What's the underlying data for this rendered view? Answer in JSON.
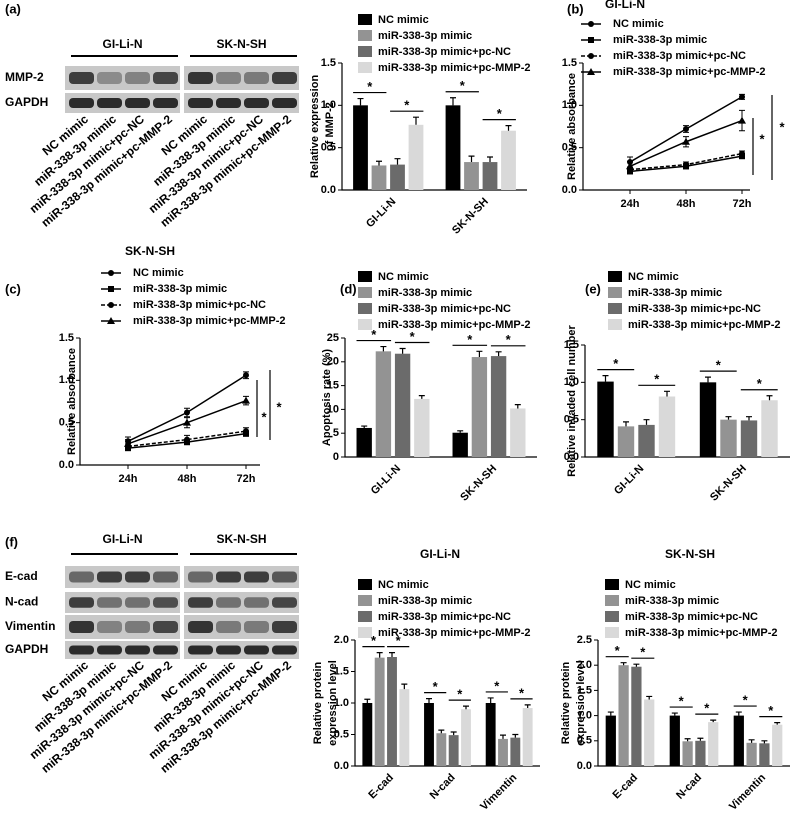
{
  "panel_labels": [
    "(a)",
    "(b)",
    "(c)",
    "(d)",
    "(e)",
    "(f)"
  ],
  "blots": [
    {
      "groups": [
        "GI-Li-N",
        "SK-N-SH"
      ],
      "rows": [
        "MMP-2",
        "GAPDH"
      ],
      "lanes": [
        "NC mimic",
        "miR-338-3p mimic",
        "miR-338-3p mimic+pc-NC",
        "miR-338-3p mimic+pc-MMP-2"
      ]
    },
    {
      "groups": [
        "GI-Li-N",
        "SK-N-SH"
      ],
      "rows": [
        "E-cad",
        "N-cad",
        "Vimentin",
        "GAPDH"
      ],
      "lanes": [
        "NC mimic",
        "miR-338-3p mimic",
        "miR-338-3p mimic+pc-NC",
        "miR-338-3p mimic+pc-MMP-2"
      ]
    }
  ],
  "chart_data": [
    {
      "type": "bar",
      "ylabel": [
        "Relative expression",
        "of MMP-2"
      ],
      "categories": [
        "GI-Li-N",
        "SK-N-SH"
      ],
      "series": [
        {
          "name": "NC mimic",
          "color": "#000000",
          "values": [
            1.0,
            1.0
          ],
          "errors": [
            0.08,
            0.09
          ]
        },
        {
          "name": "miR-338-3p mimic",
          "color": "#939393",
          "values": [
            0.29,
            0.33
          ],
          "errors": [
            0.05,
            0.07
          ]
        },
        {
          "name": "miR-338-3p mimic+pc-NC",
          "color": "#6b6b6b",
          "values": [
            0.3,
            0.33
          ],
          "errors": [
            0.07,
            0.06
          ]
        },
        {
          "name": "miR-338-3p mimic+pc-MMP-2",
          "color": "#d9d9d9",
          "values": [
            0.77,
            0.7
          ],
          "errors": [
            0.09,
            0.06
          ]
        }
      ],
      "ylim": [
        0,
        1.5
      ],
      "yticks": [
        {
          "value": 0,
          "label": "0.0"
        },
        0.5,
        {
          "value": 1,
          "label": "1.0"
        },
        1.5
      ],
      "annotations": [
        "*",
        "*",
        "*",
        "*"
      ]
    },
    {
      "type": "line",
      "title": "GI-Li-N",
      "ylabel": [
        "Relative absorbance"
      ],
      "categories": [
        "24h",
        "48h",
        "72h"
      ],
      "series": [
        {
          "name": "NC mimic",
          "color": "#000000",
          "marker": "circle",
          "values": [
            0.33,
            0.72,
            1.1
          ],
          "errors": [
            0.06,
            0.04,
            0.03
          ]
        },
        {
          "name": "miR-338-3p mimic",
          "color": "#000000",
          "marker": "square",
          "values": [
            0.22,
            0.28,
            0.4
          ],
          "errors": [
            0.03,
            0.03,
            0.03
          ]
        },
        {
          "name": "miR-338-3p mimic+pc-NC",
          "color": "#000000",
          "marker": "circle",
          "dashed": true,
          "values": [
            0.24,
            0.3,
            0.43
          ],
          "errors": [
            0.03,
            0.03,
            0.03
          ]
        },
        {
          "name": "miR-338-3p mimic+pc-MMP-2",
          "color": "#000000",
          "marker": "triangle",
          "values": [
            0.28,
            0.57,
            0.82
          ],
          "errors": [
            0.06,
            0.06,
            0.12
          ]
        }
      ],
      "ylim": [
        0,
        1.5
      ],
      "yticks": [
        {
          "value": 0,
          "label": "0.0"
        },
        0.5,
        {
          "value": 1,
          "label": "1.0"
        },
        1.5
      ],
      "annotations": [
        "*",
        "*"
      ]
    },
    {
      "type": "line",
      "title": "SK-N-SH",
      "ylabel": [
        "Relative absorbance"
      ],
      "categories": [
        "24h",
        "48h",
        "72h"
      ],
      "series": [
        {
          "name": "NC mimic",
          "color": "#000000",
          "marker": "circle",
          "values": [
            0.28,
            0.62,
            1.06
          ],
          "errors": [
            0.05,
            0.05,
            0.04
          ]
        },
        {
          "name": "miR-338-3p mimic",
          "color": "#000000",
          "marker": "square",
          "values": [
            0.2,
            0.27,
            0.37
          ],
          "errors": [
            0.03,
            0.03,
            0.03
          ]
        },
        {
          "name": "miR-338-3p mimic+pc-NC",
          "color": "#000000",
          "marker": "circle",
          "dashed": true,
          "values": [
            0.22,
            0.3,
            0.4
          ],
          "errors": [
            0.03,
            0.05,
            0.04
          ]
        },
        {
          "name": "miR-338-3p mimic+pc-MMP-2",
          "color": "#000000",
          "marker": "triangle",
          "values": [
            0.25,
            0.5,
            0.76
          ],
          "errors": [
            0.05,
            0.06,
            0.05
          ]
        }
      ],
      "ylim": [
        0,
        1.5
      ],
      "yticks": [
        {
          "value": 0,
          "label": "0.0"
        },
        0.5,
        {
          "value": 1,
          "label": "1.0"
        },
        1.5
      ],
      "annotations": [
        "*",
        "*"
      ]
    },
    {
      "type": "bar",
      "ylabel": [
        "Apoptosis rate (%)"
      ],
      "categories": [
        "GI-Li-N",
        "SK-N-SH"
      ],
      "series": [
        {
          "name": "NC mimic",
          "color": "#000000",
          "values": [
            6.1,
            5.1
          ],
          "errors": [
            0.4,
            0.4
          ]
        },
        {
          "name": "miR-338-3p mimic",
          "color": "#939393",
          "values": [
            22.2,
            21.0
          ],
          "errors": [
            1.0,
            1.2
          ]
        },
        {
          "name": "miR-338-3p mimic+pc-NC",
          "color": "#6b6b6b",
          "values": [
            21.7,
            21.2
          ],
          "errors": [
            1.1,
            0.9
          ]
        },
        {
          "name": "miR-338-3p mimic+pc-MMP-2",
          "color": "#d9d9d9",
          "values": [
            12.2,
            10.2
          ],
          "errors": [
            0.7,
            0.8
          ]
        }
      ],
      "ylim": [
        0,
        25
      ],
      "yticks": [
        0,
        5,
        10,
        15,
        20,
        25
      ],
      "annotations": [
        "*",
        "*",
        "*",
        "*"
      ]
    },
    {
      "type": "bar",
      "ylabel": [
        "Relative invaded cell number"
      ],
      "categories": [
        "GI-Li-N",
        "SK-N-SH"
      ],
      "series": [
        {
          "name": "NC mimic",
          "color": "#000000",
          "values": [
            1.01,
            1.0
          ],
          "errors": [
            0.08,
            0.07
          ]
        },
        {
          "name": "miR-338-3p mimic",
          "color": "#939393",
          "values": [
            0.41,
            0.5
          ],
          "errors": [
            0.06,
            0.04
          ]
        },
        {
          "name": "miR-338-3p mimic+pc-NC",
          "color": "#6b6b6b",
          "values": [
            0.43,
            0.49
          ],
          "errors": [
            0.07,
            0.05
          ]
        },
        {
          "name": "miR-338-3p mimic+pc-MMP-2",
          "color": "#d9d9d9",
          "values": [
            0.81,
            0.76
          ],
          "errors": [
            0.07,
            0.06
          ]
        }
      ],
      "ylim": [
        0,
        1.5
      ],
      "yticks": [
        {
          "value": 0,
          "label": "0.0"
        },
        0.5,
        {
          "value": 1,
          "label": "1.0"
        },
        1.5
      ],
      "annotations": [
        "*",
        "*",
        "*",
        "*"
      ]
    },
    {
      "type": "bar",
      "title": "GI-Li-N",
      "ylabel": [
        "Relative protein",
        "expression level"
      ],
      "categories": [
        "E-cad",
        "N-cad",
        "Vimentin"
      ],
      "series": [
        {
          "name": "NC mimic",
          "color": "#000000",
          "values": [
            1.0,
            1.0,
            1.0
          ],
          "errors": [
            0.06,
            0.07,
            0.08
          ]
        },
        {
          "name": "miR-338-3p mimic",
          "color": "#939393",
          "values": [
            1.72,
            0.52,
            0.43
          ],
          "errors": [
            0.08,
            0.05,
            0.06
          ]
        },
        {
          "name": "miR-338-3p mimic+pc-NC",
          "color": "#6b6b6b",
          "values": [
            1.73,
            0.49,
            0.45
          ],
          "errors": [
            0.07,
            0.05,
            0.05
          ]
        },
        {
          "name": "miR-338-3p mimic+pc-MMP-2",
          "color": "#d9d9d9",
          "values": [
            1.22,
            0.9,
            0.92
          ],
          "errors": [
            0.08,
            0.05,
            0.05
          ]
        }
      ],
      "ylim": [
        0,
        2
      ],
      "yticks": [
        {
          "value": 0,
          "label": "0.0"
        },
        0.5,
        {
          "value": 1,
          "label": "1.0"
        },
        1.5,
        {
          "value": 2,
          "label": "2.0"
        }
      ],
      "annotations": [
        "*",
        "*",
        "*",
        "*",
        "*",
        "*"
      ]
    },
    {
      "type": "bar",
      "title": "SK-N-SH",
      "ylabel": [
        "Relative protein",
        "expression level"
      ],
      "categories": [
        "E-cad",
        "N-cad",
        "Vimentin"
      ],
      "series": [
        {
          "name": "NC mimic",
          "color": "#000000",
          "values": [
            1.0,
            1.0,
            1.0
          ],
          "errors": [
            0.07,
            0.05,
            0.07
          ]
        },
        {
          "name": "miR-338-3p mimic",
          "color": "#939393",
          "values": [
            2.0,
            0.49,
            0.46
          ],
          "errors": [
            0.05,
            0.05,
            0.06
          ]
        },
        {
          "name": "miR-338-3p mimic+pc-NC",
          "color": "#6b6b6b",
          "values": [
            1.97,
            0.5,
            0.45
          ],
          "errors": [
            0.05,
            0.05,
            0.05
          ]
        },
        {
          "name": "miR-338-3p mimic+pc-MMP-2",
          "color": "#d9d9d9",
          "values": [
            1.32,
            0.87,
            0.82
          ],
          "errors": [
            0.06,
            0.04,
            0.04
          ]
        }
      ],
      "ylim": [
        0,
        2.5
      ],
      "yticks": [
        {
          "value": 0,
          "label": "0.0"
        },
        0.5,
        {
          "value": 1,
          "label": "1.0"
        },
        1.5,
        {
          "value": 2,
          "label": "2.0"
        },
        2.5
      ],
      "annotations": [
        "*",
        "*",
        "*",
        "*",
        "*",
        "*"
      ]
    }
  ]
}
